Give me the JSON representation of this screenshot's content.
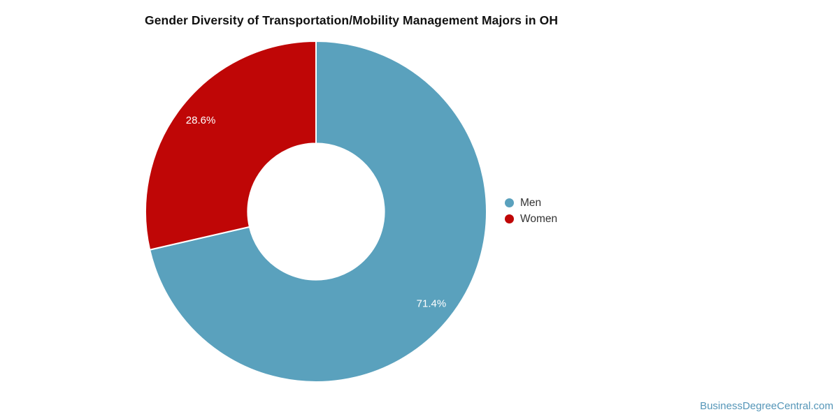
{
  "title": "Gender Diversity of Transportation/Mobility Management Majors in OH",
  "watermark": "BusinessDegreeCentral.com",
  "chart_data": {
    "type": "pie",
    "subtype": "donut",
    "title": "Gender Diversity of Transportation/Mobility Management Majors in OH",
    "categories": [
      "Men",
      "Women"
    ],
    "values": [
      71.4,
      28.6
    ],
    "slice_labels": [
      "71.4%",
      "28.6%"
    ],
    "colors": [
      "#5aa1bd",
      "#bf0606"
    ],
    "start_angle_deg": 0,
    "direction": "clockwise",
    "inner_radius_ratio": 0.4,
    "slice_separator_color": "#ffffff",
    "label_color": "#ffffff",
    "legend_position": "right"
  },
  "legend": {
    "items": [
      {
        "label": "Men",
        "color": "#5aa1bd"
      },
      {
        "label": "Women",
        "color": "#bf0606"
      }
    ]
  }
}
